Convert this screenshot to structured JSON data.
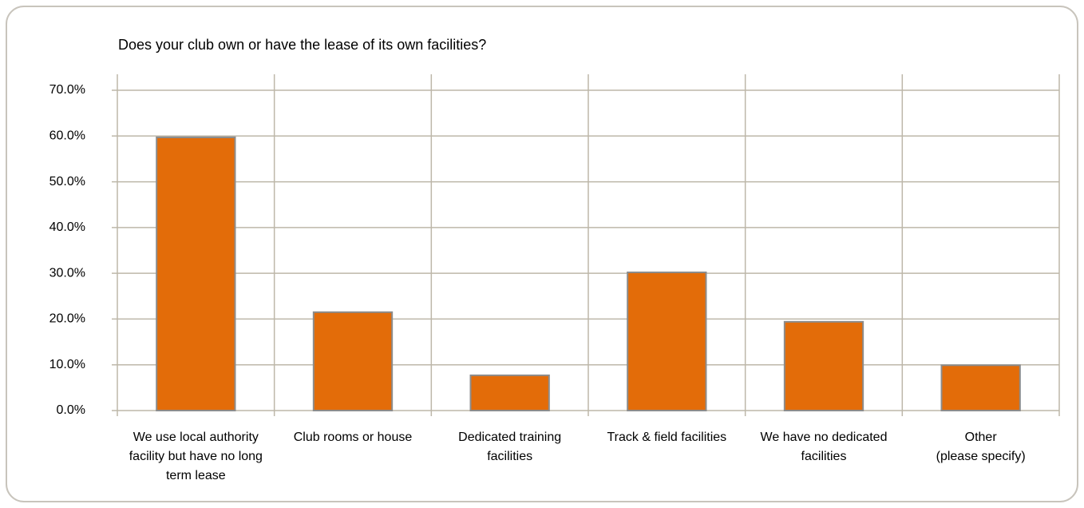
{
  "chart_data": {
    "type": "bar",
    "title": "Does your club own or have the lease of its own facilities?",
    "categories": [
      "We use  local authority\nfacility but have no long\nterm lease",
      "Club rooms or house",
      "Dedicated training\nfacilities",
      "Track & field facilities",
      "We have no dedicated\nfacilities",
      "Other\n(please specify)"
    ],
    "values": [
      59.7,
      21.5,
      7.7,
      30.2,
      19.4,
      9.9
    ],
    "color": "#e36c09",
    "ylim": [
      0,
      70
    ],
    "yticks": [
      {
        "value": 0,
        "label": "0.0%"
      },
      {
        "value": 10,
        "label": "10.0%"
      },
      {
        "value": 20,
        "label": "20.0%"
      },
      {
        "value": 30,
        "label": "30.0%"
      },
      {
        "value": 40,
        "label": "40.0%"
      },
      {
        "value": 50,
        "label": "50.0%"
      },
      {
        "value": 60,
        "label": "60.0%"
      },
      {
        "value": 70,
        "label": "70.0%"
      }
    ],
    "grid": true
  }
}
